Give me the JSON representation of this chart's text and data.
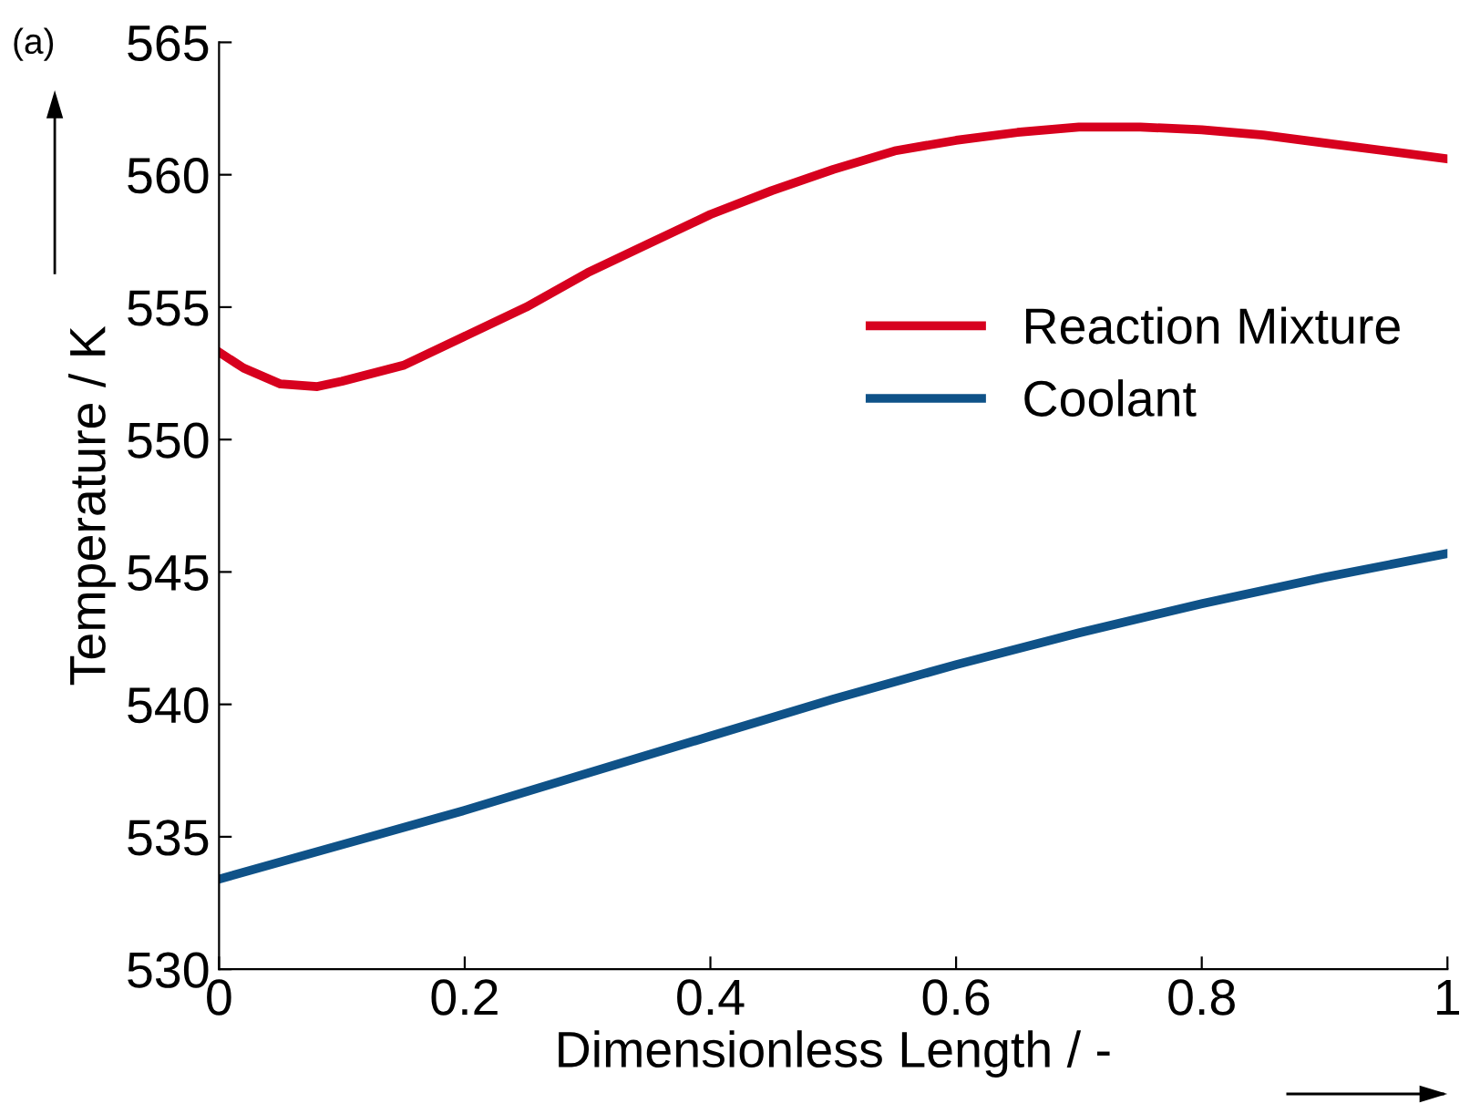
{
  "chart_data": {
    "type": "line",
    "xlabel": "Dimensionless Length / -",
    "ylabel": "Temperature / K",
    "annotations": [
      "(a)"
    ],
    "xlim": [
      0,
      1
    ],
    "xticks": [
      0,
      0.2,
      0.4,
      0.6,
      0.8,
      1
    ],
    "ylim": [
      530,
      565
    ],
    "yticks": [
      530,
      535,
      540,
      545,
      550,
      555,
      560,
      565
    ],
    "grid": false,
    "legend": "right",
    "marker": "none",
    "line_style": "solid",
    "series": [
      {
        "name": "Reaction Mixture",
        "color": "#d7001e",
        "x": [
          0,
          0.02,
          0.05,
          0.08,
          0.1,
          0.15,
          0.2,
          0.25,
          0.3,
          0.35,
          0.4,
          0.45,
          0.5,
          0.55,
          0.6,
          0.65,
          0.7,
          0.75,
          0.8,
          0.85,
          0.9,
          0.95,
          1.0
        ],
        "values": [
          553.3,
          552.7,
          552.1,
          552.0,
          552.2,
          552.8,
          553.9,
          555.0,
          556.3,
          557.4,
          558.5,
          559.4,
          560.2,
          560.9,
          561.3,
          561.6,
          561.8,
          561.8,
          561.7,
          561.5,
          561.2,
          560.9,
          560.6
        ]
      },
      {
        "name": "Coolant",
        "color": "#0f5288",
        "x": [
          0,
          0.1,
          0.2,
          0.3,
          0.4,
          0.5,
          0.6,
          0.7,
          0.8,
          0.9,
          1.0
        ],
        "values": [
          533.4,
          534.7,
          536.0,
          537.4,
          538.8,
          540.2,
          541.5,
          542.7,
          543.8,
          544.8,
          545.7
        ]
      }
    ]
  }
}
